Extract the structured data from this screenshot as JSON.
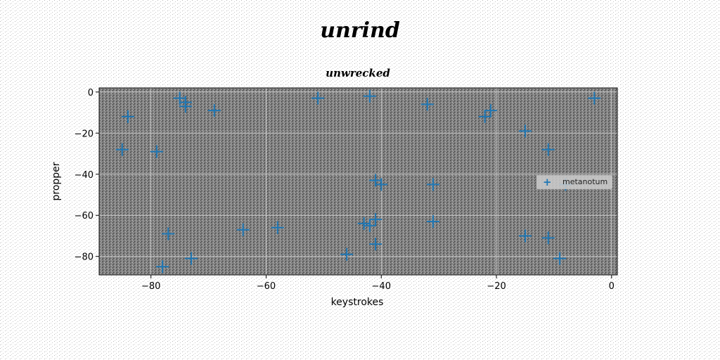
{
  "chart_data": {
    "type": "scatter",
    "title": "unrind",
    "subtitle": "unwrecked",
    "xlabel": "keystrokes",
    "ylabel": "propper",
    "xlim": [
      -89,
      1
    ],
    "ylim": [
      -89,
      2
    ],
    "xticks": [
      -80,
      -60,
      -40,
      -20,
      0
    ],
    "yticks": [
      0,
      -20,
      -40,
      -60,
      -80
    ],
    "grid": true,
    "legend_position": "right",
    "series": [
      {
        "name": "metanotum",
        "color": "#1f77b4",
        "marker": "+",
        "x": [
          -75,
          -74,
          -74,
          -84,
          -69,
          -51,
          -42,
          -32,
          -22,
          -21,
          -15,
          -11,
          -3,
          -85,
          -79,
          -41,
          -40,
          -31,
          -8,
          -41,
          -31,
          -43,
          -42,
          -77,
          -64,
          -58,
          -46,
          -41,
          -15,
          -11,
          -78,
          -73,
          -9
        ],
        "y": [
          -3,
          -5,
          -7,
          -12,
          -9,
          -3,
          -2,
          -6,
          -12,
          -9,
          -19,
          -28,
          -3,
          -28,
          -29,
          -43,
          -45,
          -45,
          -45,
          -62,
          -63,
          -64,
          -65,
          -69,
          -67,
          -66,
          -79,
          -74,
          -70,
          -71,
          -85,
          -81,
          -81
        ]
      }
    ]
  }
}
